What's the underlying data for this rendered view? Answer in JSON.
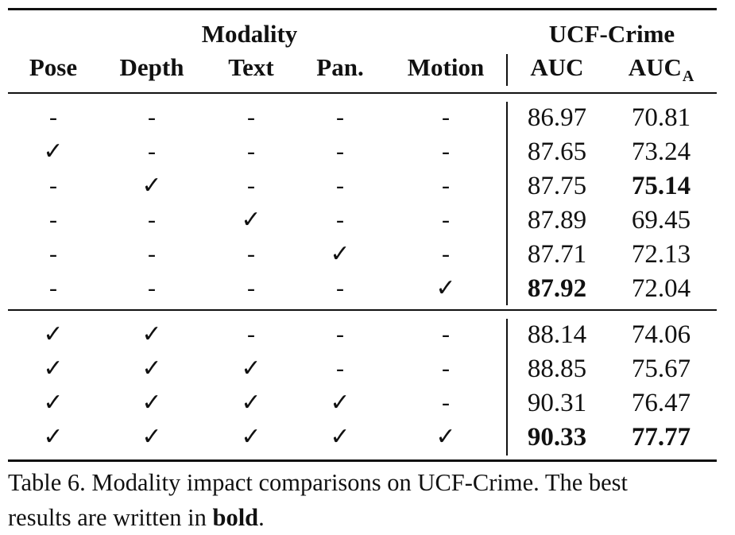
{
  "table": {
    "group_headers": {
      "modality": "Modality",
      "dataset": "UCF-Crime"
    },
    "columns": [
      {
        "label": "Pose"
      },
      {
        "label": "Depth"
      },
      {
        "label": "Text"
      },
      {
        "label": "Pan."
      },
      {
        "label": "Motion"
      },
      {
        "label": "AUC"
      },
      {
        "label": "AUC",
        "subscript": "A"
      }
    ],
    "symbols": {
      "check": "✓",
      "none": "-"
    },
    "groups": [
      [
        {
          "mods": [
            false,
            false,
            false,
            false,
            false
          ],
          "auc": "86.97",
          "auc_a": "70.81",
          "bold_auc": false,
          "bold_auc_a": false
        },
        {
          "mods": [
            true,
            false,
            false,
            false,
            false
          ],
          "auc": "87.65",
          "auc_a": "73.24",
          "bold_auc": false,
          "bold_auc_a": false
        },
        {
          "mods": [
            false,
            true,
            false,
            false,
            false
          ],
          "auc": "87.75",
          "auc_a": "75.14",
          "bold_auc": false,
          "bold_auc_a": true
        },
        {
          "mods": [
            false,
            false,
            true,
            false,
            false
          ],
          "auc": "87.89",
          "auc_a": "69.45",
          "bold_auc": false,
          "bold_auc_a": false
        },
        {
          "mods": [
            false,
            false,
            false,
            true,
            false
          ],
          "auc": "87.71",
          "auc_a": "72.13",
          "bold_auc": false,
          "bold_auc_a": false
        },
        {
          "mods": [
            false,
            false,
            false,
            false,
            true
          ],
          "auc": "87.92",
          "auc_a": "72.04",
          "bold_auc": true,
          "bold_auc_a": false
        }
      ],
      [
        {
          "mods": [
            true,
            true,
            false,
            false,
            false
          ],
          "auc": "88.14",
          "auc_a": "74.06",
          "bold_auc": false,
          "bold_auc_a": false
        },
        {
          "mods": [
            true,
            true,
            true,
            false,
            false
          ],
          "auc": "88.85",
          "auc_a": "75.67",
          "bold_auc": false,
          "bold_auc_a": false
        },
        {
          "mods": [
            true,
            true,
            true,
            true,
            false
          ],
          "auc": "90.31",
          "auc_a": "76.47",
          "bold_auc": false,
          "bold_auc_a": false
        },
        {
          "mods": [
            true,
            true,
            true,
            true,
            true
          ],
          "auc": "90.33",
          "auc_a": "77.77",
          "bold_auc": true,
          "bold_auc_a": true
        }
      ]
    ]
  },
  "caption": {
    "line1": "Table 6.  Modality impact comparisons on UCF-Crime.  The best",
    "line2_prefix": "results are written in ",
    "line2_bold": "bold",
    "line2_suffix": "."
  }
}
